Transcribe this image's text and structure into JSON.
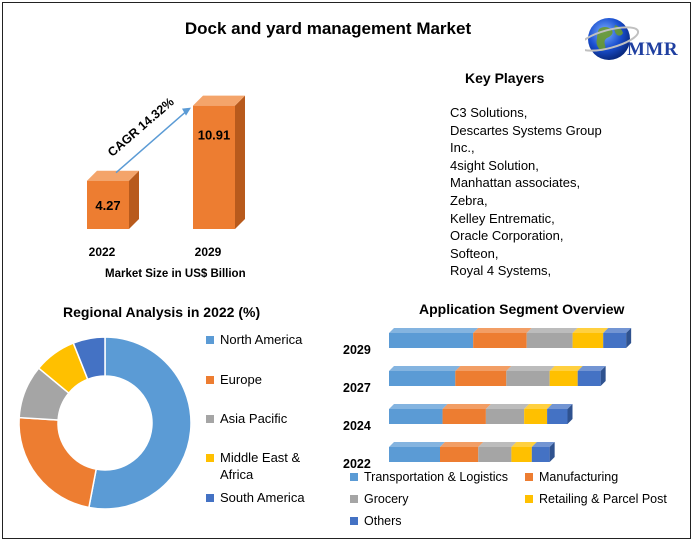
{
  "title": "Dock and yard management Market",
  "logo": {
    "text": "MMR"
  },
  "key_players": {
    "title": "Key Players",
    "items": [
      "C3 Solutions,",
      "Descartes Systems Group",
      "Inc.,",
      "4sight Solution,",
      "Manhattan associates,",
      "Zebra,",
      "Kelley Entrematic,",
      "Oracle Corporation,",
      "Softeon,",
      "Royal 4 Systems,"
    ]
  },
  "colors": {
    "bar_orange": "#ed7d31",
    "bar_orange_dark": "#b85a1c",
    "bar_orange_top": "#f4a46a",
    "north_america": "#5b9bd5",
    "europe": "#ed7d31",
    "asia_pacific": "#a5a5a5",
    "middle_east": "#ffc000",
    "south_america": "#4472c4",
    "arrow": "#5b9bd5"
  },
  "chart_data": [
    {
      "type": "bar",
      "title": "",
      "categories": [
        "2022",
        "2029"
      ],
      "values": [
        4.27,
        10.91
      ],
      "value_labels": [
        "4.27",
        "10.91"
      ],
      "xlabel": "Market Size in US$ Billion",
      "ylabel": "",
      "annotation": "CAGR 14.32%",
      "ylim": [
        0,
        11.5
      ]
    },
    {
      "type": "pie",
      "style": "donut",
      "title": "Regional Analysis in 2022 (%)",
      "categories": [
        "North America",
        "Europe",
        "Asia Pacific",
        "Middle East & Africa",
        "South America"
      ],
      "legend_lines": [
        [
          "North America"
        ],
        [
          "Europe"
        ],
        [
          "Asia Pacific"
        ],
        [
          "Middle East &",
          "Africa"
        ],
        [
          "South America"
        ]
      ],
      "values": [
        53,
        23,
        10,
        8,
        6
      ]
    },
    {
      "type": "bar",
      "orientation": "horizontal",
      "stacked": true,
      "title": "Application Segment Overview",
      "categories": [
        "2029",
        "2027",
        "2024",
        "2022"
      ],
      "series": [
        {
          "name": "Transportation & Logistics",
          "values": [
            33,
            26,
            21,
            20
          ]
        },
        {
          "name": "Manufacturing",
          "values": [
            21,
            20,
            17,
            15
          ]
        },
        {
          "name": "Grocery",
          "values": [
            18,
            17,
            15,
            13
          ]
        },
        {
          "name": "Retailing & Parcel Post",
          "values": [
            12,
            11,
            9,
            8
          ]
        },
        {
          "name": "Others",
          "values": [
            9,
            9,
            8,
            7
          ]
        }
      ],
      "legend": "bottom"
    }
  ]
}
